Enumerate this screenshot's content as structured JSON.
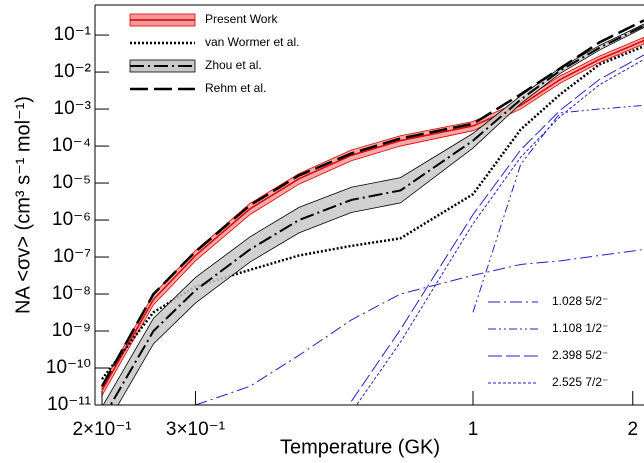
{
  "chart_data": {
    "type": "line",
    "x_label": "Temperature (GK)",
    "y_label": "NA <σv> (cm³ s⁻¹ mol⁻¹)",
    "log_x": true,
    "log_y": true,
    "xlim": [
      0.194,
      2.1
    ],
    "ylim": [
      1e-11,
      0.65
    ],
    "xticks": [
      {
        "value": 0.2,
        "label": "2×10⁻¹"
      },
      {
        "value": 0.3,
        "label": "3×10⁻¹"
      },
      1,
      2
    ],
    "yticks": [
      {
        "value": 1e-11,
        "label": "10⁻¹¹"
      },
      {
        "value": 1e-10,
        "label": "10⁻¹⁰"
      },
      {
        "value": 1e-09,
        "label": "10⁻⁹"
      },
      {
        "value": 1e-08,
        "label": "10⁻⁸"
      },
      {
        "value": 1e-07,
        "label": "10⁻⁷"
      },
      {
        "value": 1e-06,
        "label": "10⁻⁶"
      },
      {
        "value": 1e-05,
        "label": "10⁻⁵"
      },
      {
        "value": 0.0001,
        "label": "10⁻⁴"
      },
      {
        "value": 0.001,
        "label": "10⁻³"
      },
      {
        "value": 0.01,
        "label": "10⁻²"
      },
      {
        "value": 0.1,
        "label": "10⁻¹"
      }
    ],
    "x": [
      0.2,
      0.25,
      0.3,
      0.38,
      0.47,
      0.59,
      0.73,
      1.0,
      1.23,
      1.46,
      1.73,
      2.1
    ],
    "series": [
      {
        "name": "Present Work",
        "color": "#e00000",
        "band_color": "#f29a9a",
        "dash": "none",
        "width": 1.5,
        "values": [
          2.5e-11,
          7.1e-09,
          1.1e-07,
          2e-06,
          1.3e-05,
          5.6e-05,
          0.00014,
          0.00035,
          0.00126,
          0.0063,
          0.022,
          0.071
        ],
        "lower": [
          1.8e-11,
          5.1e-09,
          7.9e-08,
          1.4e-06,
          9.3e-06,
          4e-05,
          0.0001,
          0.00026,
          0.001,
          0.005,
          0.018,
          0.058
        ],
        "upper": [
          3.5e-11,
          9.9e-09,
          1.5e-07,
          2.8e-06,
          1.8e-05,
          7.8e-05,
          0.00019,
          0.00046,
          0.0016,
          0.0079,
          0.027,
          0.087
        ]
      },
      {
        "name": "van Wormer et al.",
        "color": "#000000",
        "dash": "2,2",
        "width": 2.5,
        "values": [
          5e-11,
          3.2e-09,
          1.6e-08,
          4.5e-08,
          1.1e-07,
          2e-07,
          3.2e-07,
          5e-06,
          0.00028,
          0.0025,
          0.016,
          0.05
        ]
      },
      {
        "name": "Zhou et al.",
        "color": "#000000",
        "band_color": "#c8c8c8",
        "dash": "14,4,2,4",
        "width": 2,
        "values": [
          4e-12,
          1e-09,
          1.26e-08,
          1.6e-07,
          1e-06,
          3.5e-06,
          6.3e-06,
          0.00014,
          0.0018,
          0.011,
          0.045,
          0.18
        ],
        "lower": [
          1.8e-12,
          4.5e-10,
          5.7e-09,
          7.3e-08,
          4.5e-07,
          1.6e-06,
          2.9e-06,
          8.8e-05,
          0.0014,
          0.0092,
          0.039,
          0.16
        ],
        "upper": [
          8.8e-12,
          2.2e-09,
          2.8e-08,
          3.5e-07,
          2.2e-06,
          7.7e-06,
          1.4e-05,
          0.00022,
          0.0023,
          0.013,
          0.052,
          0.2
        ]
      },
      {
        "name": "Rehm et al.",
        "color": "#000000",
        "dash": "18,6",
        "width": 2.5,
        "values": [
          3.2e-11,
          1e-08,
          1.4e-07,
          2.5e-06,
          1.6e-05,
          6.3e-05,
          0.00016,
          0.0004,
          0.0025,
          0.0126,
          0.063,
          0.25
        ]
      },
      {
        "name": "1.028 5/2⁻",
        "color": "#2222cc",
        "dash": "12,4,2,4",
        "width": 1,
        "values": [
          null,
          null,
          1e-11,
          3.2e-11,
          2.2e-10,
          2e-09,
          1e-08,
          3.2e-08,
          6.3e-08,
          7.9e-08,
          1.1e-07,
          1.6e-07
        ]
      },
      {
        "name": "1.108 1/2⁻",
        "color": "#2222cc",
        "dash": "8,3,2,3,2,3",
        "width": 1,
        "values": [
          null,
          null,
          null,
          null,
          null,
          null,
          null,
          3.2e-09,
          3.2e-05,
          0.00079,
          0.001,
          0.00126
        ]
      },
      {
        "name": "2.398 5/2⁻",
        "color": "#2222cc",
        "dash": "14,4",
        "width": 1,
        "values": [
          null,
          null,
          null,
          null,
          null,
          1.26e-11,
          1.1e-09,
          1.4e-06,
          7.9e-05,
          0.00093,
          0.0063,
          0.029
        ]
      },
      {
        "name": "2.525 7/2⁻",
        "color": "#2222cc",
        "dash": "3,2",
        "width": 1,
        "values": [
          null,
          null,
          null,
          null,
          null,
          6.3e-12,
          5e-10,
          7.9e-07,
          5e-05,
          0.00063,
          0.0045,
          0.022
        ]
      }
    ]
  }
}
